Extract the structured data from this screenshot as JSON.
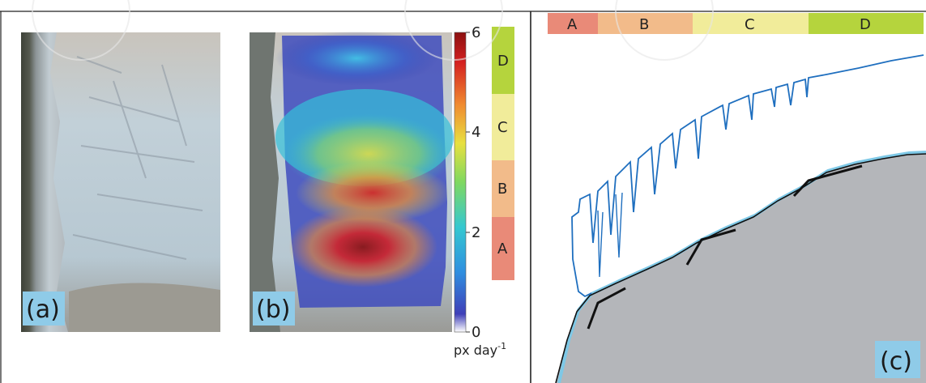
{
  "panels": {
    "a": {
      "label": "(a)"
    },
    "b": {
      "label": "(b)"
    },
    "c": {
      "label": "(c)"
    }
  },
  "colorbar": {
    "ticks": [
      "6",
      "4",
      "2",
      "0"
    ],
    "unit_base": "px day",
    "unit_exp": "-1",
    "colors": [
      "#3f3fb8",
      "#2f8fe0",
      "#35c8d0",
      "#7fd860",
      "#e8e040",
      "#f08a30",
      "#d42020",
      "#8b1010"
    ]
  },
  "zones_vertical": [
    "D",
    "C",
    "B",
    "A"
  ],
  "zones_horizontal": [
    "A",
    "B",
    "C",
    "D"
  ],
  "zone_colors": {
    "A": "#e98a78",
    "B": "#f2bb8a",
    "C": "#f1ec9a",
    "D": "#b5d43d"
  },
  "colors": {
    "ice_outline": "#1f6fbf",
    "bed_fill": "#b4b6ba",
    "water": "#7ec8e6"
  }
}
